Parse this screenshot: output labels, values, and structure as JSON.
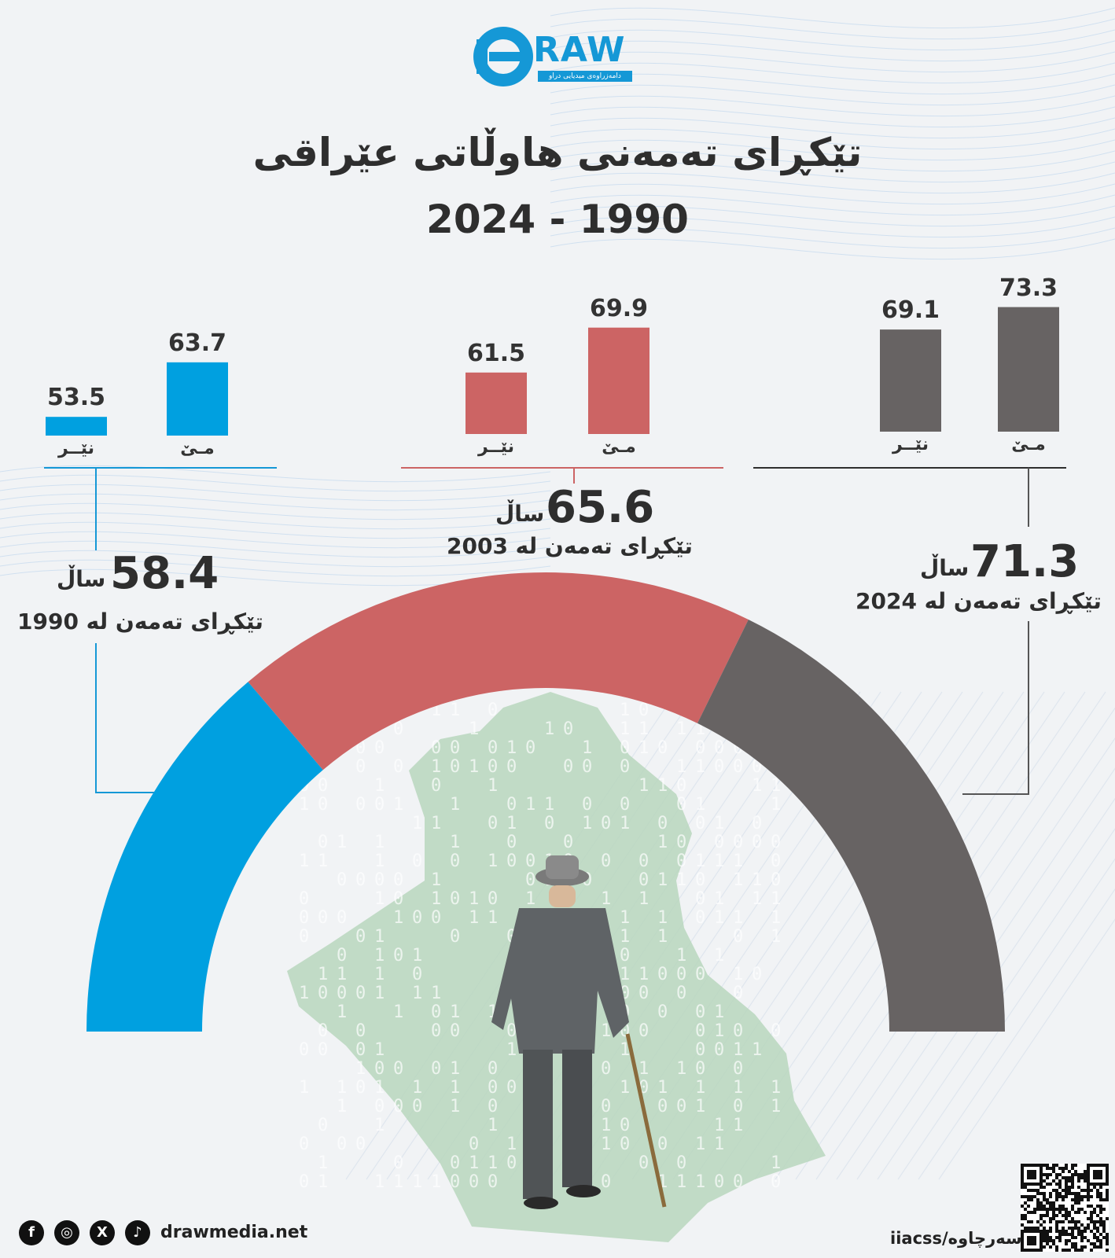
{
  "header": {
    "logo_text": "RAW",
    "logo_sub": "دامەزراوەی میدیایی دراو",
    "title": "تێکڕای تەمەنی هاوڵاتی عێراقی",
    "subtitle": "2024 - 1990"
  },
  "chart_data": {
    "type": "bar",
    "series": [
      {
        "name": "مێ",
        "values": [
          63.7,
          69.9,
          73.3
        ]
      },
      {
        "name": "نێر",
        "values": [
          53.5,
          61.5,
          69.1
        ]
      }
    ],
    "groups": [
      {
        "year": "1990",
        "female": 63.7,
        "male": 53.5,
        "average": 58.4,
        "unit": "ساڵ",
        "caption": "تێکڕای تەمەن لە 1990",
        "color": "#00a0e0"
      },
      {
        "year": "2003",
        "female": 69.9,
        "male": 61.5,
        "average": 65.6,
        "unit": "ساڵ",
        "caption": "تێکڕای تەمەن لە 2003",
        "color": "#cc6464"
      },
      {
        "year": "2024",
        "female": 73.3,
        "male": 69.1,
        "average": 71.3,
        "unit": "ساڵ",
        "caption": "تێکڕای تەمەن لە 2024",
        "color": "#676363"
      }
    ],
    "labels": {
      "female": "مـێ",
      "male": "نێــر"
    }
  },
  "footer": {
    "website": "drawmedia.net",
    "source": "سەرچاوە/iiacss",
    "socials": [
      "facebook-icon",
      "instagram-icon",
      "x-icon",
      "tiktok-icon"
    ]
  }
}
